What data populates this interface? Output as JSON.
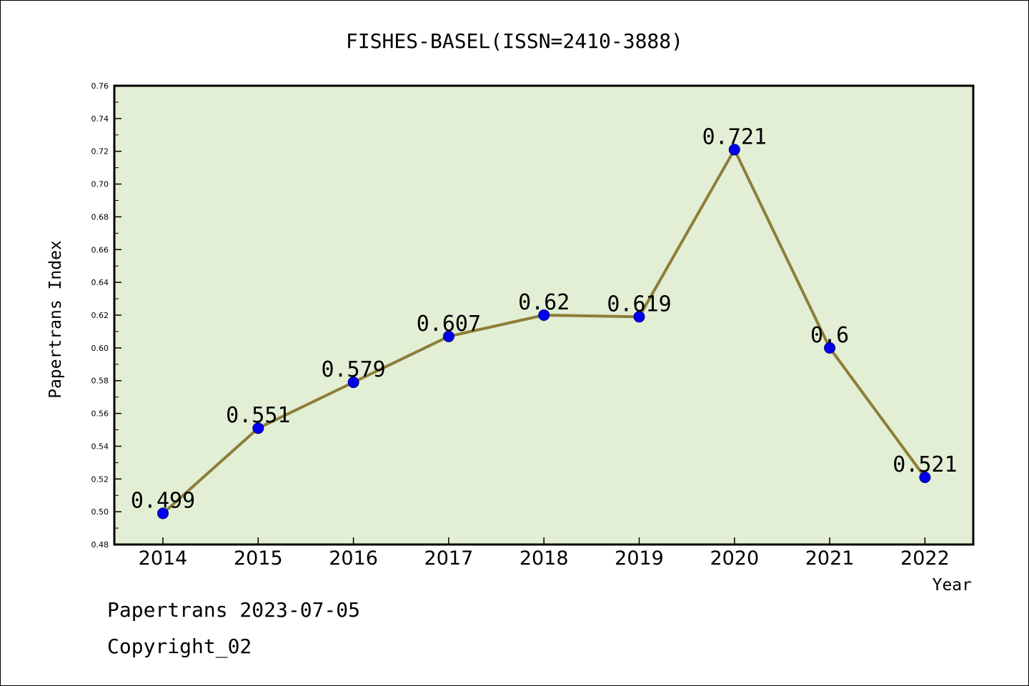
{
  "colors": {
    "plot_background": "#e2efd5",
    "line": "#8c7e39",
    "marker": "#0000ee",
    "axis": "#000000"
  },
  "footer": {
    "source": "Papertrans 2023-07-05",
    "copyright": "Copyright_02"
  },
  "chart_data": {
    "type": "line",
    "title": "FISHES-BASEL(ISSN=2410-3888)",
    "xlabel": "Year",
    "ylabel": "Papertrans Index",
    "categories": [
      "2014",
      "2015",
      "2016",
      "2017",
      "2018",
      "2019",
      "2020",
      "2021",
      "2022"
    ],
    "values": [
      0.499,
      0.551,
      0.579,
      0.607,
      0.62,
      0.619,
      0.721,
      0.6,
      0.521
    ],
    "data_labels": [
      "0.499",
      "0.551",
      "0.579",
      "0.607",
      "0.62",
      "0.619",
      "0.721",
      "0.6",
      "0.521"
    ],
    "ylim": [
      0.48,
      0.76
    ],
    "yticks": [
      "0.48",
      "0.50",
      "0.52",
      "0.54",
      "0.56",
      "0.58",
      "0.60",
      "0.62",
      "0.64",
      "0.66",
      "0.68",
      "0.70",
      "0.72",
      "0.74",
      "0.76"
    ],
    "grid": false,
    "legend": "none"
  }
}
